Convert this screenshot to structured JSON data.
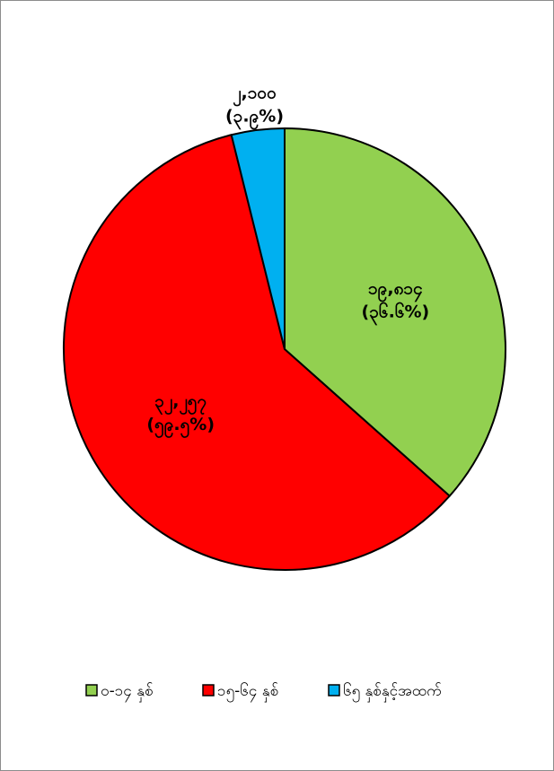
{
  "chart_data": {
    "type": "pie",
    "title": "",
    "slices": [
      {
        "name": "၀-၁၄ နှစ်",
        "value": 19814,
        "label": "၁၉,၈၁၄",
        "percent_label": "(၃၆.၆%)",
        "color": "#92d050"
      },
      {
        "name": "၁၅-၆၄ နှစ်",
        "value": 32257,
        "label": "၃၂,၂၅၇",
        "percent_label": "(၅၉.၅%)",
        "color": "#ff0000"
      },
      {
        "name": "၆၅ နှစ်နှင့်အထက်",
        "value": 2100,
        "label": "၂,၁၀၀",
        "percent_label": "(၃.၉%)",
        "color": "#00b0f0"
      }
    ],
    "legend_position": "bottom"
  }
}
